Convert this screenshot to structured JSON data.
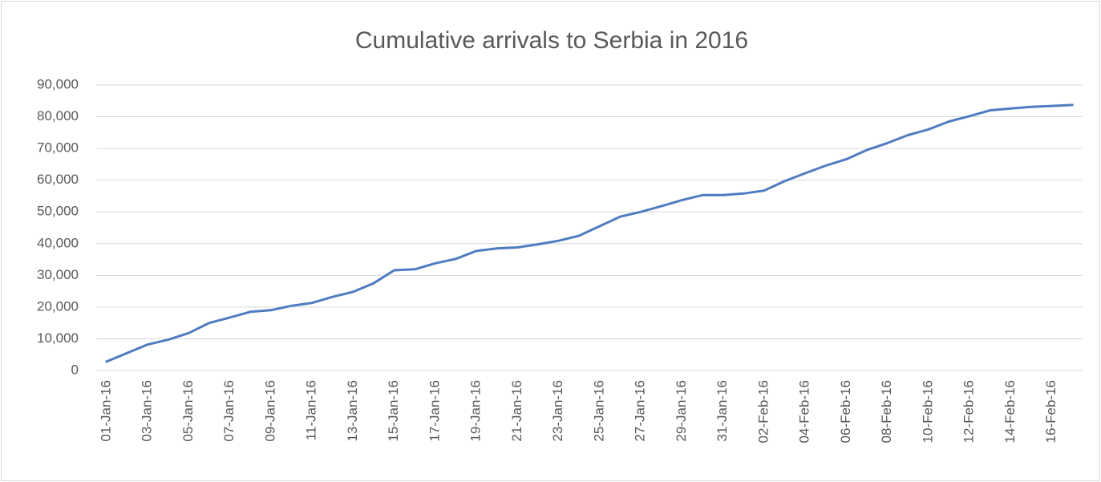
{
  "chart_data": {
    "type": "line",
    "title": "Cumulative arrivals to Serbia in 2016",
    "categories": [
      "01-Jan-16",
      null,
      "03-Jan-16",
      null,
      "05-Jan-16",
      null,
      "07-Jan-16",
      null,
      "09-Jan-16",
      null,
      "11-Jan-16",
      null,
      "13-Jan-16",
      null,
      "15-Jan-16",
      null,
      "17-Jan-16",
      null,
      "19-Jan-16",
      null,
      "21-Jan-16",
      null,
      "23-Jan-16",
      null,
      "25-Jan-16",
      null,
      "27-Jan-16",
      null,
      "29-Jan-16",
      null,
      "31-Jan-16",
      null,
      "02-Feb-16",
      null,
      "04-Feb-16",
      null,
      "06-Feb-16",
      null,
      "08-Feb-16",
      null,
      "10-Feb-16",
      null,
      "12-Feb-16",
      null,
      "14-Feb-16",
      null,
      "16-Feb-16",
      null
    ],
    "series": [
      {
        "name": "Cumulative arrivals",
        "color": "#4f7cc0",
        "values": [
          2800,
          5500,
          8200,
          9700,
          11800,
          15000,
          16700,
          18500,
          19000,
          20400,
          21300,
          23200,
          24800,
          27500,
          31600,
          31900,
          33800,
          35200,
          37700,
          38500,
          38800,
          39800,
          40900,
          42500,
          45500,
          48500,
          50000,
          51800,
          53700,
          55300,
          55300,
          55800,
          56700,
          59700,
          62200,
          64600,
          66600,
          69500,
          71700,
          74200,
          76000,
          78500,
          80200,
          82000,
          82600,
          83100,
          83400,
          83700
        ]
      }
    ],
    "ylim": [
      0,
      90000
    ],
    "yticks": [
      0,
      {
        "value": 10000,
        "label": "10,000"
      },
      {
        "value": 20000,
        "label": "20,000"
      },
      {
        "value": 30000,
        "label": "30,000"
      },
      {
        "value": 40000,
        "label": "40,000"
      },
      {
        "value": 50000,
        "label": "50,000"
      },
      {
        "value": 60000,
        "label": "60,000"
      },
      {
        "value": 70000,
        "label": "70,000"
      },
      {
        "value": 80000,
        "label": "80,000"
      },
      {
        "value": 90000,
        "label": "90,000"
      }
    ],
    "grid": true
  }
}
